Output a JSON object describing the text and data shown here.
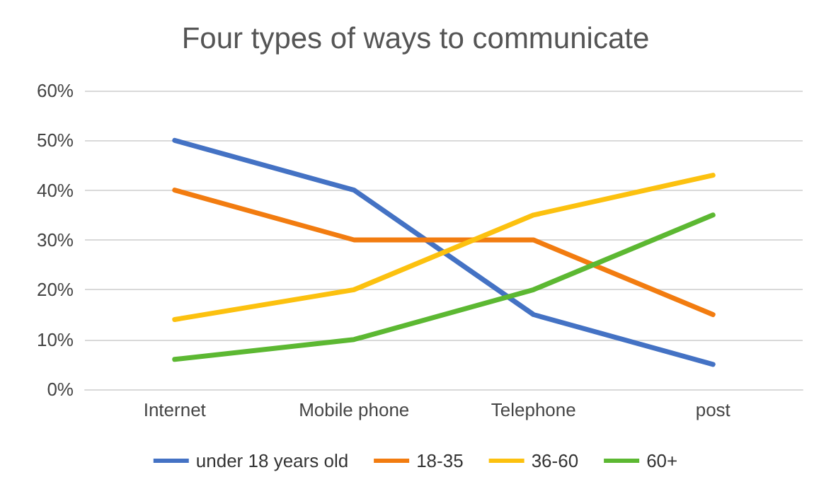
{
  "chart_data": {
    "type": "line",
    "title": "Four types of ways to communicate",
    "categories": [
      "Internet",
      "Mobile phone",
      "Telephone",
      "post"
    ],
    "series": [
      {
        "name": "under 18 years old",
        "color": "#4472c4",
        "values": [
          50,
          40,
          15,
          5
        ]
      },
      {
        "name": "18-35",
        "color": "#f27c10",
        "values": [
          40,
          30,
          30,
          15
        ]
      },
      {
        "name": "36-60",
        "color": "#fcc10f",
        "values": [
          14,
          20,
          35,
          43
        ]
      },
      {
        "name": "60+",
        "color": "#5cb832",
        "values": [
          6,
          10,
          20,
          35
        ]
      }
    ],
    "ylim": [
      0,
      60
    ],
    "yticks": [
      {
        "value": 0,
        "label": "0%"
      },
      {
        "value": 10,
        "label": "10%"
      },
      {
        "value": 20,
        "label": "20%"
      },
      {
        "value": 30,
        "label": "30%"
      },
      {
        "value": 40,
        "label": "40%"
      },
      {
        "value": 50,
        "label": "50%"
      },
      {
        "value": 60,
        "label": "60%"
      }
    ],
    "grid": "y",
    "legend": "bottom",
    "marker": "none",
    "line_style": "solid"
  }
}
